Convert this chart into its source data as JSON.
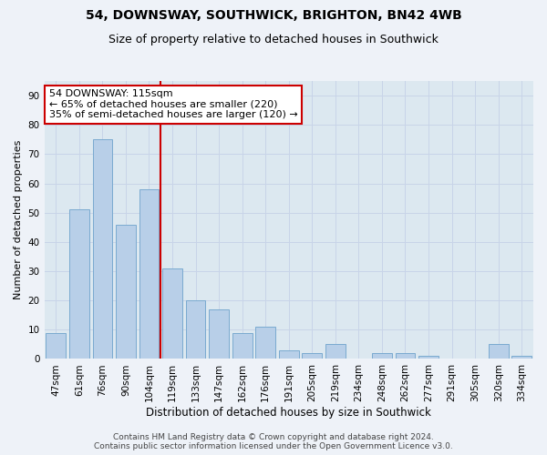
{
  "title": "54, DOWNSWAY, SOUTHWICK, BRIGHTON, BN42 4WB",
  "subtitle": "Size of property relative to detached houses in Southwick",
  "xlabel": "Distribution of detached houses by size in Southwick",
  "ylabel": "Number of detached properties",
  "categories": [
    "47sqm",
    "61sqm",
    "76sqm",
    "90sqm",
    "104sqm",
    "119sqm",
    "133sqm",
    "147sqm",
    "162sqm",
    "176sqm",
    "191sqm",
    "205sqm",
    "219sqm",
    "234sqm",
    "248sqm",
    "262sqm",
    "277sqm",
    "291sqm",
    "305sqm",
    "320sqm",
    "334sqm"
  ],
  "values": [
    9,
    51,
    75,
    46,
    58,
    31,
    20,
    17,
    9,
    11,
    3,
    2,
    5,
    0,
    2,
    2,
    1,
    0,
    0,
    5,
    1
  ],
  "bar_color": "#b8cfe8",
  "bar_edge_color": "#7aaad0",
  "vline_x": 4.5,
  "vline_color": "#cc0000",
  "annotation_line1": "54 DOWNSWAY: 115sqm",
  "annotation_line2": "← 65% of detached houses are smaller (220)",
  "annotation_line3": "35% of semi-detached houses are larger (120) →",
  "annotation_box_color": "#ffffff",
  "annotation_box_edge": "#cc0000",
  "ylim": [
    0,
    95
  ],
  "yticks": [
    0,
    10,
    20,
    30,
    40,
    50,
    60,
    70,
    80,
    90
  ],
  "grid_color": "#c8d4e8",
  "bg_color": "#dce8f0",
  "fig_bg_color": "#eef2f8",
  "footer": "Contains HM Land Registry data © Crown copyright and database right 2024.\nContains public sector information licensed under the Open Government Licence v3.0.",
  "title_fontsize": 10,
  "subtitle_fontsize": 9,
  "xlabel_fontsize": 8.5,
  "ylabel_fontsize": 8,
  "tick_fontsize": 7.5,
  "footer_fontsize": 6.5,
  "annot_fontsize": 8
}
